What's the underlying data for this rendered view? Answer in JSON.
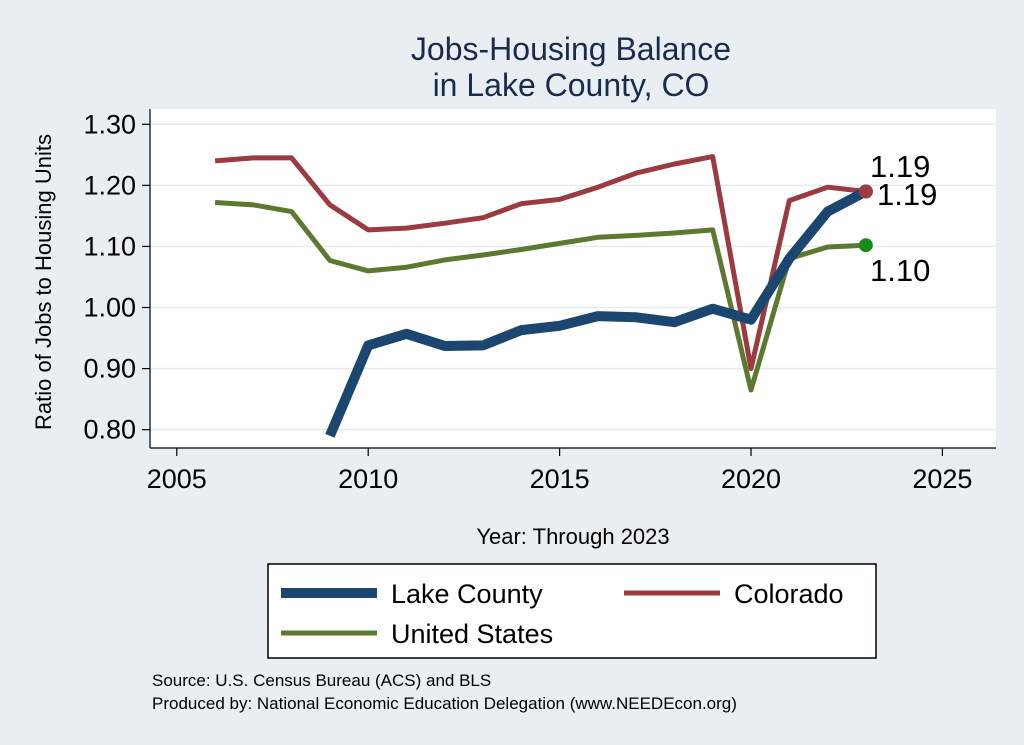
{
  "chart_data": {
    "type": "line",
    "title_lines": [
      "Jobs-Housing Balance",
      "in Lake County, CO"
    ],
    "xlabel": "Year: Through 2023",
    "ylabel": "Ratio of Jobs to Housing Units",
    "xlim": [
      2004.3,
      2026.4
    ],
    "ylim": [
      0.77,
      1.325
    ],
    "x_ticks": [
      2005,
      2010,
      2015,
      2020,
      2025
    ],
    "y_ticks": [
      0.8,
      0.9,
      1.0,
      1.1,
      1.2,
      1.3
    ],
    "y_tick_labels": [
      "0.80",
      "0.90",
      "1.00",
      "1.10",
      "1.20",
      "1.30"
    ],
    "grid": true,
    "legend_position": "bottom",
    "series": [
      {
        "name": "Lake County",
        "color": "#1a4670",
        "x": [
          2009,
          2010,
          2011,
          2012,
          2013,
          2014,
          2015,
          2016,
          2017,
          2018,
          2019,
          2020,
          2021,
          2022,
          2023
        ],
        "values": [
          0.79,
          0.938,
          0.957,
          0.937,
          0.938,
          0.963,
          0.97,
          0.986,
          0.984,
          0.976,
          0.998,
          0.98,
          1.08,
          1.157,
          1.19
        ],
        "end_label": "1.19"
      },
      {
        "name": "Colorado",
        "color": "#9b3a3f",
        "x": [
          2006,
          2007,
          2008,
          2009,
          2010,
          2011,
          2012,
          2013,
          2014,
          2015,
          2016,
          2017,
          2018,
          2019,
          2020,
          2021,
          2022,
          2023
        ],
        "values": [
          1.24,
          1.245,
          1.245,
          1.168,
          1.127,
          1.13,
          1.138,
          1.147,
          1.17,
          1.177,
          1.197,
          1.22,
          1.235,
          1.247,
          0.9,
          1.175,
          1.197,
          1.19
        ],
        "end_label": "1.19"
      },
      {
        "name": "United States",
        "color": "#5b7a2f",
        "x": [
          2006,
          2007,
          2008,
          2009,
          2010,
          2011,
          2012,
          2013,
          2014,
          2015,
          2016,
          2017,
          2018,
          2019,
          2020,
          2021,
          2022,
          2023
        ],
        "values": [
          1.172,
          1.168,
          1.157,
          1.077,
          1.06,
          1.066,
          1.078,
          1.086,
          1.095,
          1.105,
          1.115,
          1.118,
          1.122,
          1.127,
          0.865,
          1.08,
          1.099,
          1.102
        ],
        "end_label": "1.10"
      }
    ],
    "end_markers": [
      {
        "series": "Lake County",
        "color": "#3b4a7a"
      },
      {
        "series": "Colorado",
        "color": "#9b3a3f"
      },
      {
        "series": "United States",
        "color": "#1a8a1a"
      }
    ]
  },
  "source_note": "Source: U.S. Census Bureau (ACS) and BLS",
  "producer_note": "Produced by: National Economic Education Delegation (www.NEEDEcon.org)"
}
